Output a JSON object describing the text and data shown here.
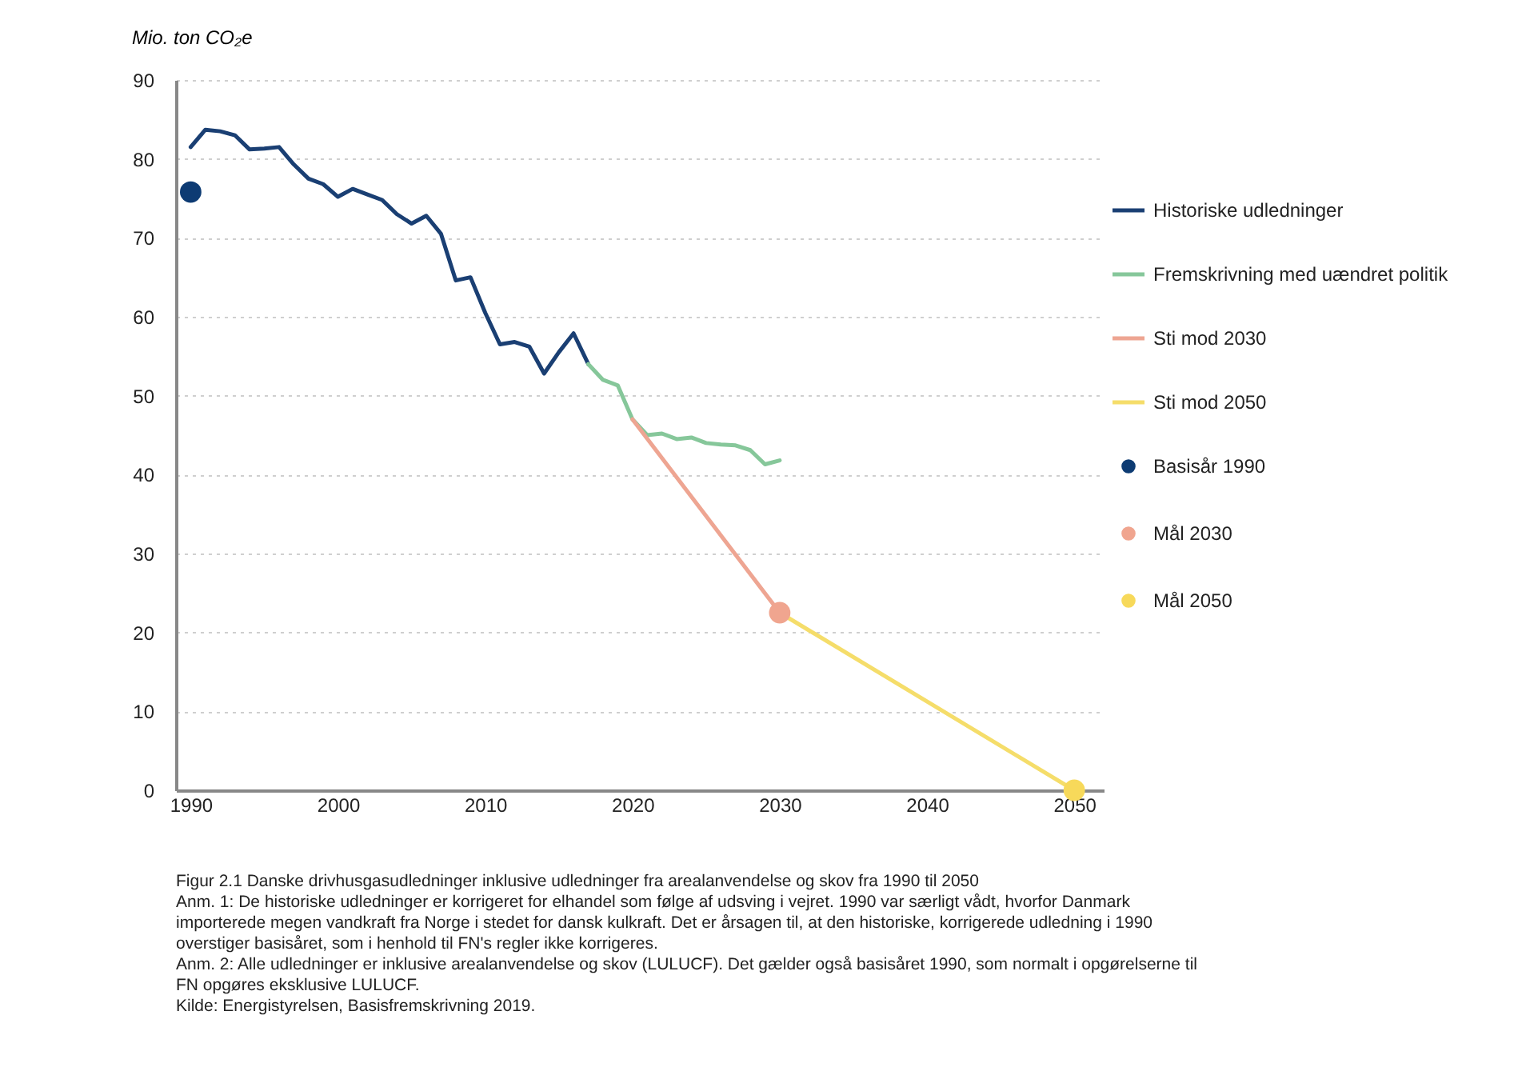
{
  "chart_data": {
    "type": "line",
    "ylabel": "Mio. ton CO₂e",
    "xlim": [
      1989,
      2052
    ],
    "xticks": [
      1990,
      2000,
      2010,
      2020,
      2030,
      2040,
      2050
    ],
    "ylim": [
      0,
      90
    ],
    "yticks": [
      0,
      10,
      20,
      30,
      40,
      50,
      60,
      70,
      80,
      90
    ],
    "grid": "y",
    "legend": "right",
    "series": [
      {
        "name": "Historiske udledninger",
        "color": "#1a3f73",
        "x": [
          1990,
          1991,
          1992,
          1993,
          1994,
          1995,
          1996,
          1997,
          1998,
          1999,
          2000,
          2001,
          2002,
          2003,
          2004,
          2005,
          2006,
          2007,
          2008,
          2009,
          2010,
          2011,
          2012,
          2013,
          2014,
          2015,
          2016,
          2017
        ],
        "values": [
          81.5,
          83.7,
          83.5,
          83.0,
          81.2,
          81.3,
          81.5,
          79.3,
          77.5,
          76.8,
          75.2,
          76.2,
          75.5,
          74.8,
          73.0,
          71.8,
          72.8,
          70.5,
          64.6,
          65.0,
          60.5,
          56.5,
          56.8,
          56.2,
          52.8,
          55.5,
          57.9,
          54.0
        ]
      },
      {
        "name": "Fremskrivning med uændret politik",
        "type": "line",
        "color": "#86c79a",
        "x": [
          2017,
          2018,
          2019,
          2020,
          2021,
          2022,
          2023,
          2024,
          2025,
          2026,
          2027,
          2028,
          2029,
          2030
        ],
        "values": [
          54.0,
          52.0,
          51.3,
          47.0,
          45.0,
          45.2,
          44.5,
          44.7,
          44.0,
          43.8,
          43.7,
          43.1,
          41.3,
          41.8
        ]
      },
      {
        "name": "Sti mod 2030",
        "type": "line",
        "color": "#eea592",
        "x": [
          2020,
          2030
        ],
        "values": [
          47.0,
          22.5
        ]
      },
      {
        "name": "Sti mod 2050",
        "type": "line",
        "color": "#f5dd6a",
        "x": [
          2030,
          2050
        ],
        "values": [
          22.5,
          0
        ]
      },
      {
        "name": "Basisår 1990",
        "type": "scatter",
        "color": "#0d3b73",
        "x": [
          1990
        ],
        "values": [
          75.8
        ]
      },
      {
        "name": "Mål 2030",
        "type": "scatter",
        "color": "#f0a58f",
        "x": [
          2030
        ],
        "values": [
          22.5
        ]
      },
      {
        "name": "Mål 2050",
        "type": "scatter",
        "color": "#f7d95a",
        "x": [
          2050
        ],
        "values": [
          0
        ]
      }
    ],
    "annotations": [
      "Figur 2.1 Danske drivhusgasudledninger inklusive udledninger fra arealanvendelse og skov fra 1990 til 2050",
      "Anm. 1: De historiske udledninger er korrigeret for elhandel som følge af udsving i vejret. 1990 var særligt vådt, hvorfor Danmark importerede megen vandkraft fra Norge i stedet for dansk kulkraft. Det er årsagen til, at den historiske, korrigerede udledning i 1990 overstiger basisåret, som i henhold til FN's regler ikke korrigeres.",
      "Anm. 2: Alle udledninger er inklusive arealanvendelse og skov (LULUCF). Det gælder også basisåret 1990, som normalt i opgørelserne til FN opgøres eksklusive LULUCF.",
      "Kilde: Energistyrelsen, Basisfremskrivning 2019."
    ]
  }
}
